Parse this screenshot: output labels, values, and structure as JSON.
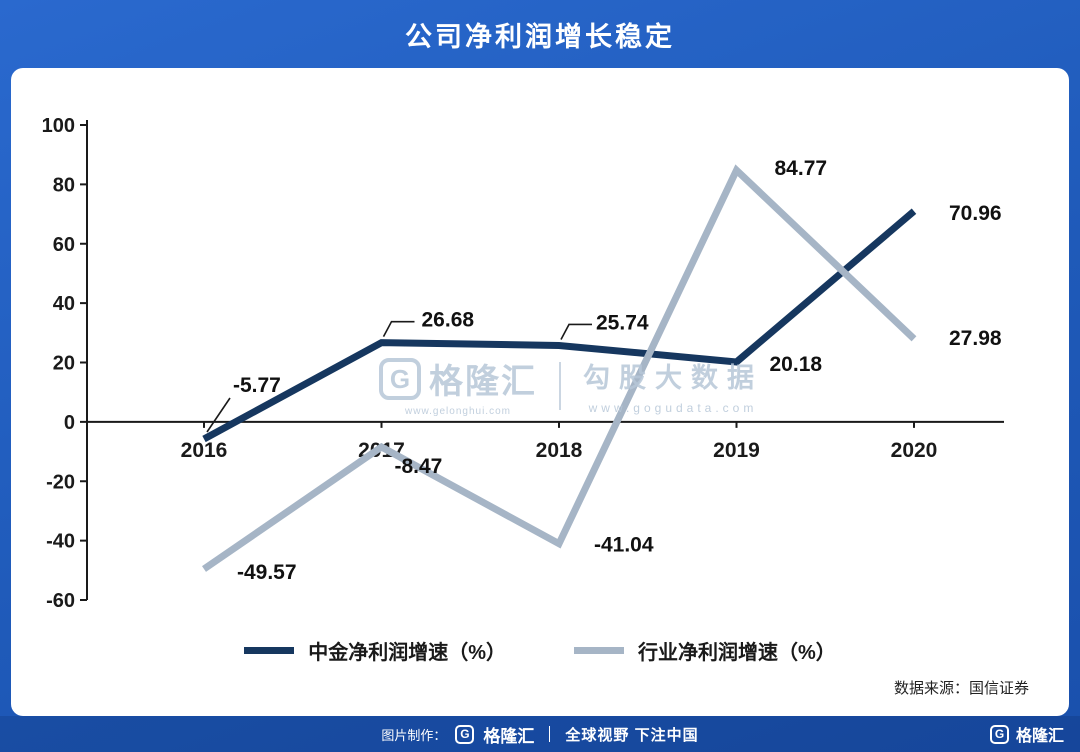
{
  "header": {
    "title": "公司净利润增长稳定"
  },
  "chart_data": {
    "type": "line",
    "title": "公司净利润增长稳定",
    "categories": [
      "2016",
      "2017",
      "2018",
      "2019",
      "2020"
    ],
    "series": [
      {
        "name": "中金净利润增速（%）",
        "color": "#16375f",
        "values": [
          -5.77,
          26.68,
          25.74,
          20.18,
          70.96
        ]
      },
      {
        "name": "行业净利润增速（%）",
        "color": "#a6b5c6",
        "values": [
          -49.57,
          -8.47,
          -41.04,
          84.77,
          27.98
        ]
      }
    ],
    "ylim": [
      -60,
      100
    ],
    "yticks": [
      100,
      80,
      60,
      40,
      20,
      0,
      -20,
      -40,
      -60
    ],
    "ytick_step": 20,
    "grid": false,
    "data_labels": true,
    "legend_position": "bottom",
    "axis_color": "#1a1a1a"
  },
  "watermark": {
    "brand_initial": "G",
    "brand": "格隆汇",
    "brand_url": "www.gelonghui.com",
    "tagline": "勾股大数据",
    "tagline_url": "www.gogudata.com"
  },
  "source_note": "数据来源：国信证券",
  "footer": {
    "credit_label": "图片制作：",
    "brand_initial": "G",
    "brand": "格隆汇",
    "slogan": "全球视野 下注中国",
    "right_brand_initial": "G",
    "right_brand": "格隆汇"
  }
}
